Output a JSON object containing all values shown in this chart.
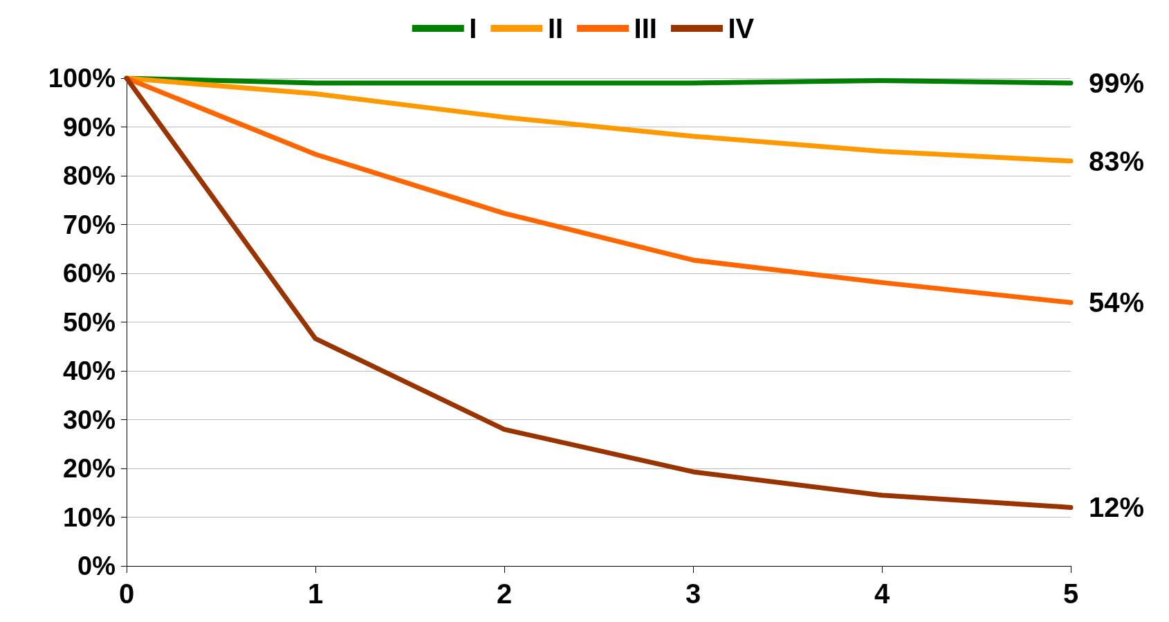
{
  "chart_data": {
    "type": "line",
    "x": [
      0,
      1,
      2,
      3,
      4,
      5
    ],
    "xlim": [
      0,
      5
    ],
    "xticks": [
      0,
      1,
      2,
      3,
      4,
      5
    ],
    "ylim": [
      0,
      100
    ],
    "yticks": [
      {
        "value": 0,
        "label": "0%"
      },
      {
        "value": 10,
        "label": "10%"
      },
      {
        "value": 20,
        "label": "20%"
      },
      {
        "value": 30,
        "label": "30%"
      },
      {
        "value": 40,
        "label": "40%"
      },
      {
        "value": 50,
        "label": "50%"
      },
      {
        "value": 60,
        "label": "60%"
      },
      {
        "value": 70,
        "label": "70%"
      },
      {
        "value": 80,
        "label": "80%"
      },
      {
        "value": 90,
        "label": "90%"
      },
      {
        "value": 100,
        "label": "100%"
      }
    ],
    "grid": "y",
    "legend": "top",
    "marker": "none",
    "line_style": "solid",
    "series": [
      {
        "name": "I",
        "color": "#008000",
        "values": [
          100,
          99,
          99,
          99,
          99.5,
          99
        ],
        "value_labels": [
          null,
          null,
          null,
          null,
          null,
          "99%"
        ]
      },
      {
        "name": "II",
        "color": "#ff9900",
        "values": [
          100,
          96.8,
          92,
          88.1,
          85,
          83
        ],
        "value_labels": [
          null,
          null,
          null,
          null,
          null,
          "83%"
        ]
      },
      {
        "name": "III",
        "color": "#ff6600",
        "values": [
          100,
          84.4,
          72.3,
          62.7,
          58.1,
          54
        ],
        "value_labels": [
          null,
          null,
          null,
          null,
          null,
          "54%"
        ]
      },
      {
        "name": "IV",
        "color": "#993300",
        "values": [
          100,
          46.6,
          28,
          19.3,
          14.5,
          12
        ],
        "value_labels": [
          null,
          null,
          null,
          null,
          null,
          "12%"
        ]
      }
    ]
  }
}
